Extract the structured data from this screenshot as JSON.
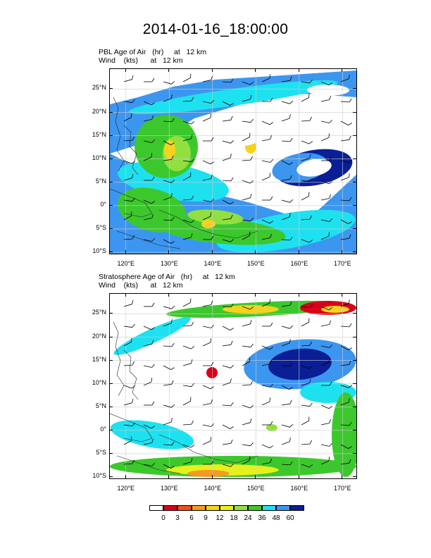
{
  "title": "2014-01-16_18:00:00",
  "panels": [
    {
      "id": "pbl",
      "title_line1": "PBL Age of Air   (hr)     at   12 km",
      "title_line2": "Wind    (kts)      at   12 km"
    },
    {
      "id": "strat",
      "title_line1": "Stratosphere Age of Air   (hr)     at   12 km",
      "title_line2": "Wind    (kts)      at   12 km"
    }
  ],
  "axes": {
    "lat_labels": [
      "25°N",
      "20°N",
      "15°N",
      "10°N",
      "5°N",
      "0°",
      "5°S",
      "10°S"
    ],
    "lat_values": [
      25,
      20,
      15,
      10,
      5,
      0,
      -5,
      -10
    ],
    "lon_labels": [
      "120°E",
      "130°E",
      "140°E",
      "150°E",
      "160°E",
      "170°E"
    ],
    "lon_values": [
      120,
      130,
      140,
      150,
      160,
      170
    ],
    "lon_range": [
      116.3,
      173.2
    ],
    "lat_range": [
      -10.3,
      29.3
    ]
  },
  "colorbar": {
    "labels": [
      "0",
      "3",
      "6",
      "9",
      "12",
      "18",
      "24",
      "36",
      "48",
      "60"
    ],
    "colors": [
      "#ffffff",
      "#d9001a",
      "#f05020",
      "#f59a1f",
      "#f5d21e",
      "#e6f01e",
      "#91e040",
      "#3cc82d",
      "#1ee1f0",
      "#3c96f0",
      "#0a1e96"
    ]
  }
}
